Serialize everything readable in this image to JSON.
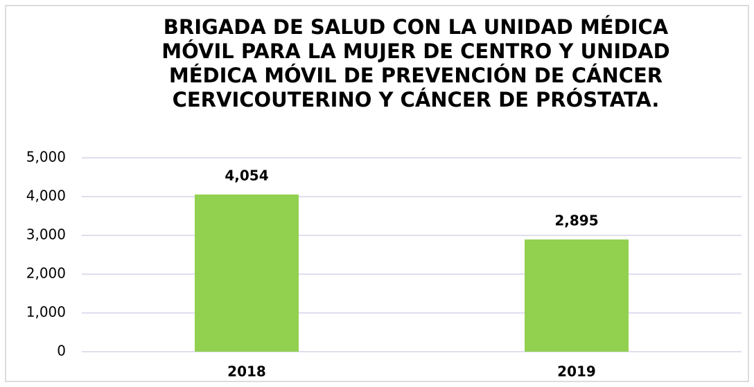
{
  "chart_data": {
    "type": "bar",
    "title": "BRIGADA DE SALUD CON LA UNIDAD MÉDICA MÓVIL PARA LA MUJER DE CENTRO Y UNIDAD MÉDICA MÓVIL DE PREVENCIÓN DE CÁNCER CERVICOUTERINO Y CÁNCER DE PRÓSTATA.",
    "categories": [
      "2018",
      "2019"
    ],
    "values": [
      4054,
      2895
    ],
    "value_labels": [
      "4,054",
      "2,895"
    ],
    "color": "#92d050",
    "ylim": [
      0,
      5000
    ],
    "yticks": [
      0,
      {
        "value": 1000,
        "label": "1,000"
      },
      {
        "value": 2000,
        "label": "2,000"
      },
      {
        "value": 3000,
        "label": "3,000"
      },
      {
        "value": 4000,
        "label": "4,000"
      },
      {
        "value": 5000,
        "label": "5,000"
      }
    ],
    "grid": true
  }
}
